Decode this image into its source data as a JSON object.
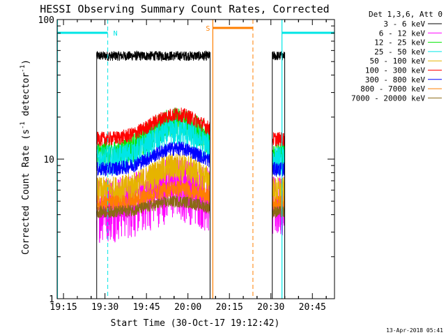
{
  "chart_data": {
    "type": "line",
    "title": "HESSI Observing Summary Count Rates, Corrected",
    "xlabel": "Start Time (30-Oct-17 19:12:42)",
    "ylabel_main": "Corrected Count Rate (s",
    "ylabel_sup1": "-1",
    "ylabel_mid": " detector",
    "ylabel_sup2": "-1",
    "ylabel_end": ")",
    "timestamp": "13-Apr-2018 05:41",
    "legend_title": "Det 1,3,6, Att 0",
    "y_scale": "log",
    "ylim": [
      1,
      100
    ],
    "xlim": [
      "19:12:42",
      "20:53:00"
    ],
    "x_ticks": [
      "19:15",
      "19:30",
      "19:45",
      "20:00",
      "20:15",
      "20:30",
      "20:45"
    ],
    "y_ticks": [
      "1",
      "10",
      "100"
    ],
    "segments": [
      [
        "19:27:00",
        "20:08:00"
      ],
      [
        "20:30:30",
        "20:35:00"
      ]
    ],
    "series": [
      {
        "name": "3 - 6 keV",
        "color": "#000000",
        "base": 55,
        "peak": 55,
        "noise": 0.04
      },
      {
        "name": "6 - 12 keV",
        "color": "#ff00ff",
        "base": 5,
        "peak": 7,
        "noise": 0.25
      },
      {
        "name": "12 - 25 keV",
        "color": "#00e600",
        "base": 11,
        "peak": 19,
        "noise": 0.12
      },
      {
        "name": "25 - 50 keV",
        "color": "#00e6e6",
        "base": 10,
        "peak": 16,
        "noise": 0.12
      },
      {
        "name": "50 - 100 keV",
        "color": "#e6b400",
        "base": 6,
        "peak": 9,
        "noise": 0.12
      },
      {
        "name": "100 - 300 keV",
        "color": "#ff0000",
        "base": 14,
        "peak": 21,
        "noise": 0.06
      },
      {
        "name": "300 - 800 keV",
        "color": "#0000ff",
        "base": 8.5,
        "peak": 12,
        "noise": 0.06
      },
      {
        "name": "800 - 7000 keV",
        "color": "#ff7f00",
        "base": 4.8,
        "peak": 6.2,
        "noise": 0.07
      },
      {
        "name": "7000 - 20000 keV",
        "color": "#8b6914",
        "base": 4.2,
        "peak": 5,
        "noise": 0.05
      }
    ],
    "annotations": [
      {
        "label": "N",
        "type": "night",
        "color": "#00e6e6",
        "ranges": [
          [
            "19:12:42",
            "19:31:00"
          ],
          [
            "20:34:00",
            "20:53:00"
          ]
        ]
      },
      {
        "label": "S",
        "type": "saa",
        "color": "#ff7f00",
        "ranges": [
          [
            "20:09:00",
            "20:23:30"
          ]
        ]
      }
    ]
  }
}
